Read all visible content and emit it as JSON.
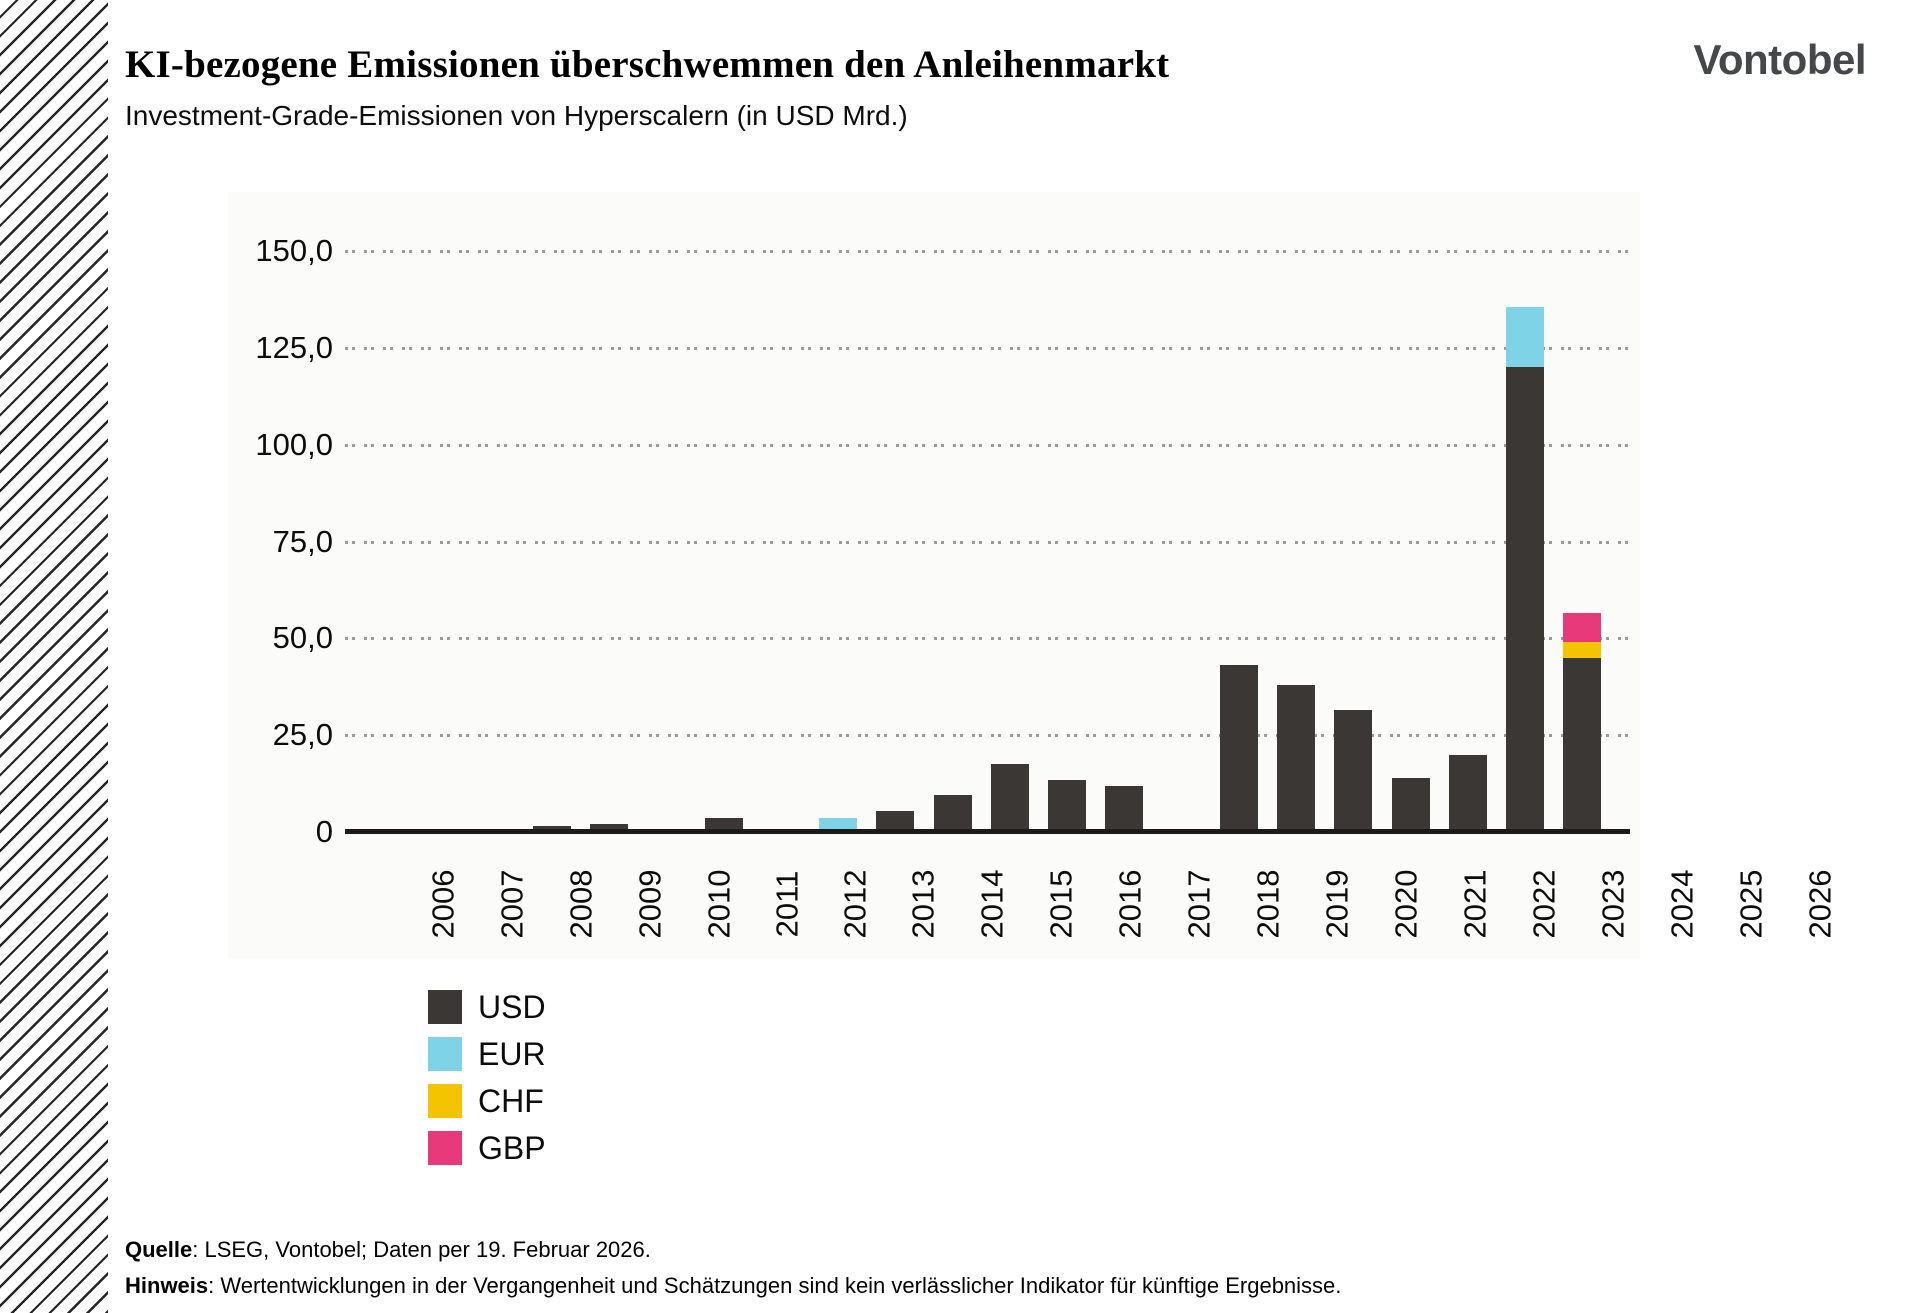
{
  "header": {
    "title": "KI-bezogene Emissionen überschwemmen den Anleihenmarkt",
    "subtitle": "Investment-Grade-Emissionen von Hyperscalern (in USD Mrd.)",
    "logo": "Vontobel"
  },
  "chart_data": {
    "type": "bar",
    "stacked": true,
    "title": "KI-bezogene Emissionen überschwemmen den Anleihenmarkt",
    "subtitle": "Investment-Grade-Emissionen von Hyperscalern (in USD Mrd.)",
    "unit": "USD Mrd.",
    "categories": [
      "2006",
      "2007",
      "2008",
      "2009",
      "2010",
      "2011",
      "2012",
      "2013",
      "2014",
      "2015",
      "2016",
      "2017",
      "2018",
      "2019",
      "2020",
      "2021",
      "2022",
      "2023",
      "2024",
      "2025",
      "2026"
    ],
    "series": [
      {
        "name": "USD",
        "color": "#3b3734",
        "values": [
          0.2,
          0.2,
          1.5,
          2.0,
          0.8,
          3.5,
          0.8,
          0,
          5.5,
          9.5,
          17.5,
          13.5,
          12.0,
          0.3,
          43.0,
          38.0,
          31.5,
          14.0,
          20.0,
          120.0,
          45.0
        ]
      },
      {
        "name": "EUR",
        "color": "#7ed3e7",
        "values": [
          0,
          0,
          0,
          0,
          0,
          0,
          0,
          3.5,
          0,
          0,
          0,
          0,
          0,
          0,
          0,
          0,
          0,
          0,
          0,
          15.5,
          0
        ]
      },
      {
        "name": "CHF",
        "color": "#f5c400",
        "values": [
          0,
          0,
          0,
          0,
          0,
          0,
          0,
          0,
          0,
          0,
          0,
          0,
          0,
          0,
          0,
          0,
          0,
          0,
          0,
          0,
          4.0
        ]
      },
      {
        "name": "GBP",
        "color": "#e8397b",
        "values": [
          0,
          0,
          0,
          0,
          0,
          0,
          0,
          0,
          0,
          0,
          0,
          0,
          0,
          0,
          0,
          0,
          0,
          0,
          0,
          0,
          7.5
        ]
      }
    ],
    "ylim": [
      0,
      150
    ],
    "yticks": [
      {
        "label": "150,0",
        "value": 150
      },
      {
        "label": "125,0",
        "value": 125
      },
      {
        "label": "100,0",
        "value": 100
      },
      {
        "label": "75,0",
        "value": 75
      },
      {
        "label": "50,0",
        "value": 50
      },
      {
        "label": "25,0",
        "value": 25
      },
      {
        "label": "0",
        "value": 0
      }
    ],
    "grid": "dotted horizontal gridlines",
    "legend_position": "bottom-left"
  },
  "footer": {
    "source_label": "Quelle",
    "source_text": ": LSEG, Vontobel; Daten per 19. Februar 2026.",
    "note_label": "Hinweis",
    "note_text": ": Wertentwicklungen in der Vergangenheit und Schätzungen sind kein verlässlicher Indikator für künftige Ergebnisse."
  }
}
